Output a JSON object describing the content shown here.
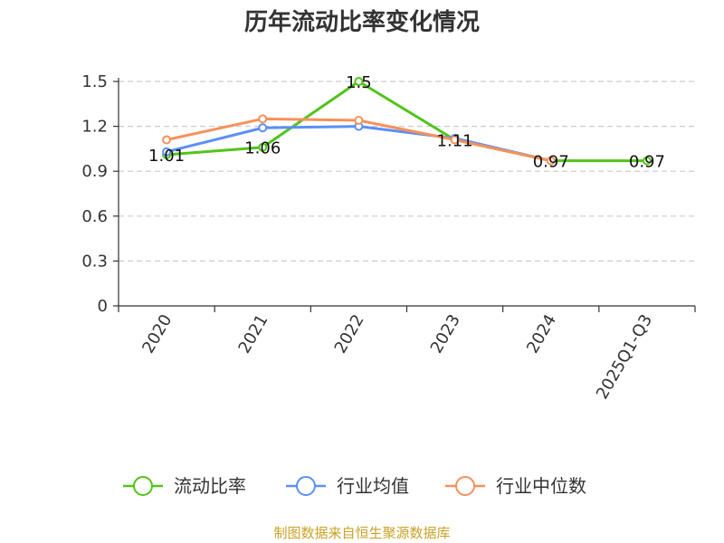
{
  "chart_data": {
    "type": "line",
    "title": "历年流动比率变化情况",
    "categories": [
      "2020",
      "2021",
      "2022",
      "2023",
      "2024",
      "2025Q1-Q3"
    ],
    "ylim": [
      0,
      1.5
    ],
    "yticks": [
      "0",
      "0.3",
      "0.6",
      "0.9",
      "1.2",
      "1.5"
    ],
    "grid": true,
    "legend_position": "bottom",
    "series": [
      {
        "name": "流动比率",
        "color": "#52c41a",
        "values": [
          1.01,
          1.06,
          1.5,
          1.11,
          0.97,
          0.97
        ],
        "labels": [
          "1.01",
          "1.06",
          "1.5",
          "1.11",
          "0.97",
          "0.97"
        ]
      },
      {
        "name": "行业均值",
        "color": "#5b8ff9",
        "values": [
          1.03,
          1.19,
          1.2,
          1.12,
          0.97,
          null
        ]
      },
      {
        "name": "行业中位数",
        "color": "#f6915b",
        "values": [
          1.11,
          1.25,
          1.24,
          1.11,
          0.97,
          null
        ]
      }
    ]
  },
  "footer": {
    "source_text": "制图数据来自恒生聚源数据库",
    "source_color": "#c9a227"
  }
}
